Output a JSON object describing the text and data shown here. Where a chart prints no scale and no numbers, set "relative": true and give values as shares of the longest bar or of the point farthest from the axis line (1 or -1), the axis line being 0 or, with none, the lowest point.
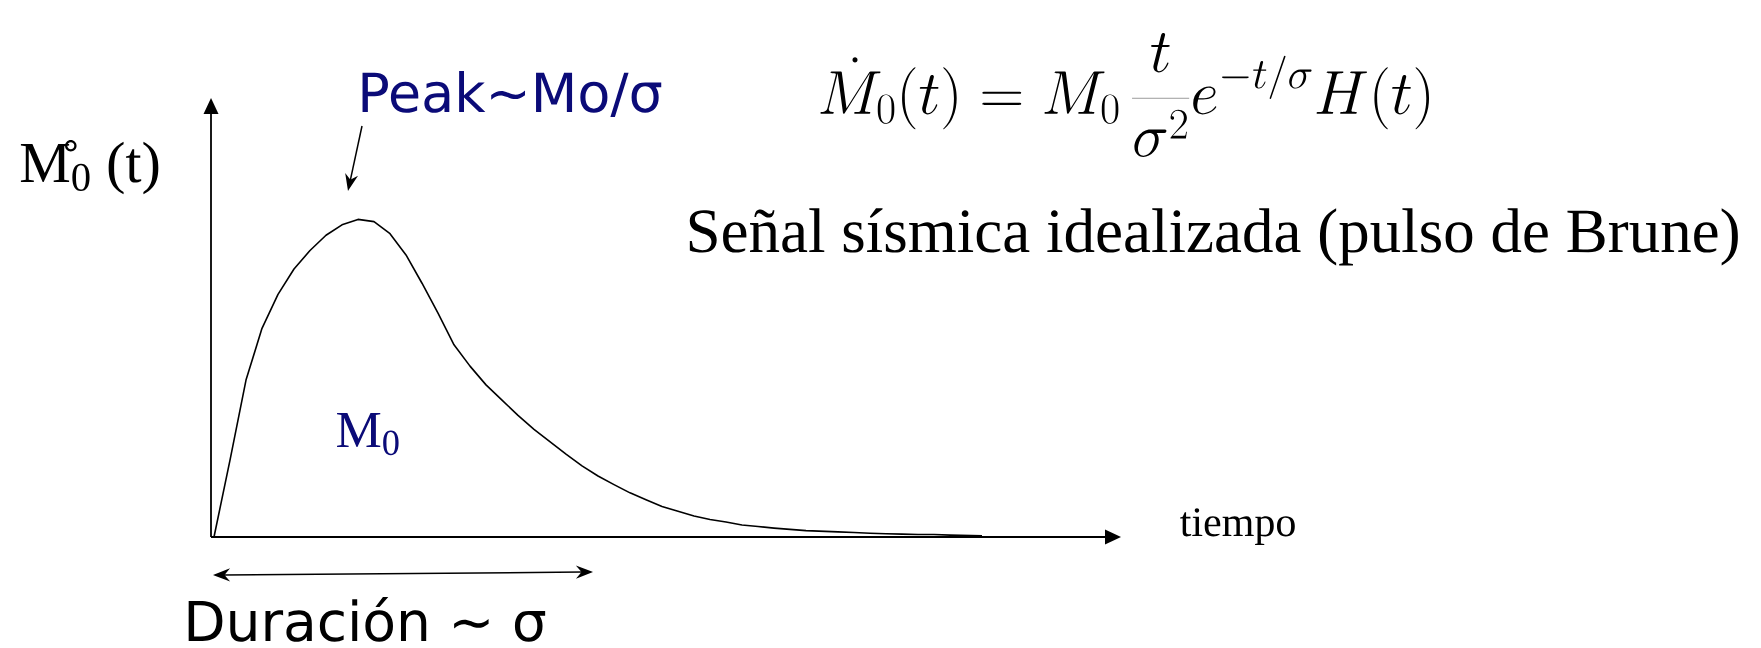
{
  "chart_data": {
    "type": "line",
    "title": "Señal sísmica idealizada (pulso de Brune)",
    "xlabel": "tiempo",
    "ylabel": "M̊$_{0}$ (t)",
    "relative": true,
    "color": "#000000",
    "categories": [
      null,
      null,
      null,
      null,
      null,
      null,
      null,
      null,
      null,
      null,
      null,
      null,
      null,
      null,
      null,
      null,
      null,
      null,
      null,
      null,
      null,
      null,
      null,
      null,
      null,
      null,
      null,
      null,
      null,
      null,
      null,
      null,
      null,
      null,
      null,
      null,
      null,
      null,
      null,
      null,
      null,
      null,
      null,
      null,
      null,
      null,
      null,
      null,
      null
    ],
    "values": [
      0,
      0.242,
      0.494,
      0.657,
      0.764,
      0.844,
      0.902,
      0.95,
      0.983,
      1,
      0.993,
      0.955,
      0.888,
      0.799,
      0.705,
      0.605,
      0.538,
      0.479,
      0.431,
      0.383,
      0.339,
      0.3,
      0.261,
      0.224,
      0.192,
      0.165,
      0.139,
      0.117,
      0.096,
      0.081,
      0.066,
      0.055,
      0.047,
      0.038,
      0.033,
      0.028,
      0.024,
      0.02,
      0.018,
      0.016,
      0.014,
      0.012,
      0.01,
      0.009,
      0.008,
      0.008,
      0.006,
      0.005,
      0.004
    ],
    "annotations": [
      "\\dot{M}_{0}(t)=M_{0}\\,\\frac{t}{\\sigma^{2}}e^{-t/\\sigma}H(t)",
      "Peak~Mo/σ",
      "M$_{0}$",
      "Duración ~ σ"
    ]
  }
}
